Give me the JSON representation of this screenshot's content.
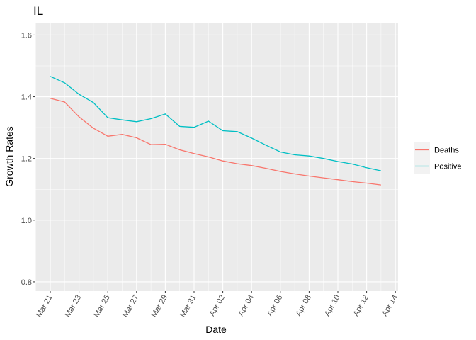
{
  "chart_data": {
    "type": "line",
    "title": "IL",
    "xlabel": "Date",
    "ylabel": "Growth Rates",
    "x": [
      "Mar 21",
      "Mar 22",
      "Mar 23",
      "Mar 24",
      "Mar 25",
      "Mar 26",
      "Mar 27",
      "Mar 28",
      "Mar 29",
      "Mar 30",
      "Mar 31",
      "Apr 01",
      "Apr 02",
      "Apr 03",
      "Apr 04",
      "Apr 05",
      "Apr 06",
      "Apr 07",
      "Apr 08",
      "Apr 09",
      "Apr 10",
      "Apr 11",
      "Apr 12",
      "Apr 13"
    ],
    "x_ticks": [
      "Mar 21",
      "Mar 23",
      "Mar 25",
      "Mar 27",
      "Mar 29",
      "Mar 31",
      "Apr 02",
      "Apr 04",
      "Apr 06",
      "Apr 08",
      "Apr 10",
      "Apr 12",
      "Apr 14"
    ],
    "y_ticks": [
      "0.8",
      "1.0",
      "1.2",
      "1.4",
      "1.6"
    ],
    "ylim": [
      0.77,
      1.64
    ],
    "grid": true,
    "legend_position": "right",
    "series": [
      {
        "name": "Deaths",
        "color": "#F8766D",
        "values": [
          1.395,
          1.383,
          1.335,
          1.298,
          1.272,
          1.278,
          1.267,
          1.245,
          1.246,
          1.228,
          1.216,
          1.205,
          1.192,
          1.183,
          1.177,
          1.168,
          1.158,
          1.15,
          1.143,
          1.137,
          1.131,
          1.125,
          1.12,
          1.114
        ]
      },
      {
        "name": "Positive",
        "color": "#00BFC4",
        "values": [
          1.466,
          1.445,
          1.408,
          1.381,
          1.332,
          1.325,
          1.319,
          1.329,
          1.344,
          1.304,
          1.301,
          1.321,
          1.29,
          1.287,
          1.266,
          1.243,
          1.221,
          1.212,
          1.208,
          1.2,
          1.19,
          1.182,
          1.17,
          1.16
        ]
      }
    ]
  }
}
